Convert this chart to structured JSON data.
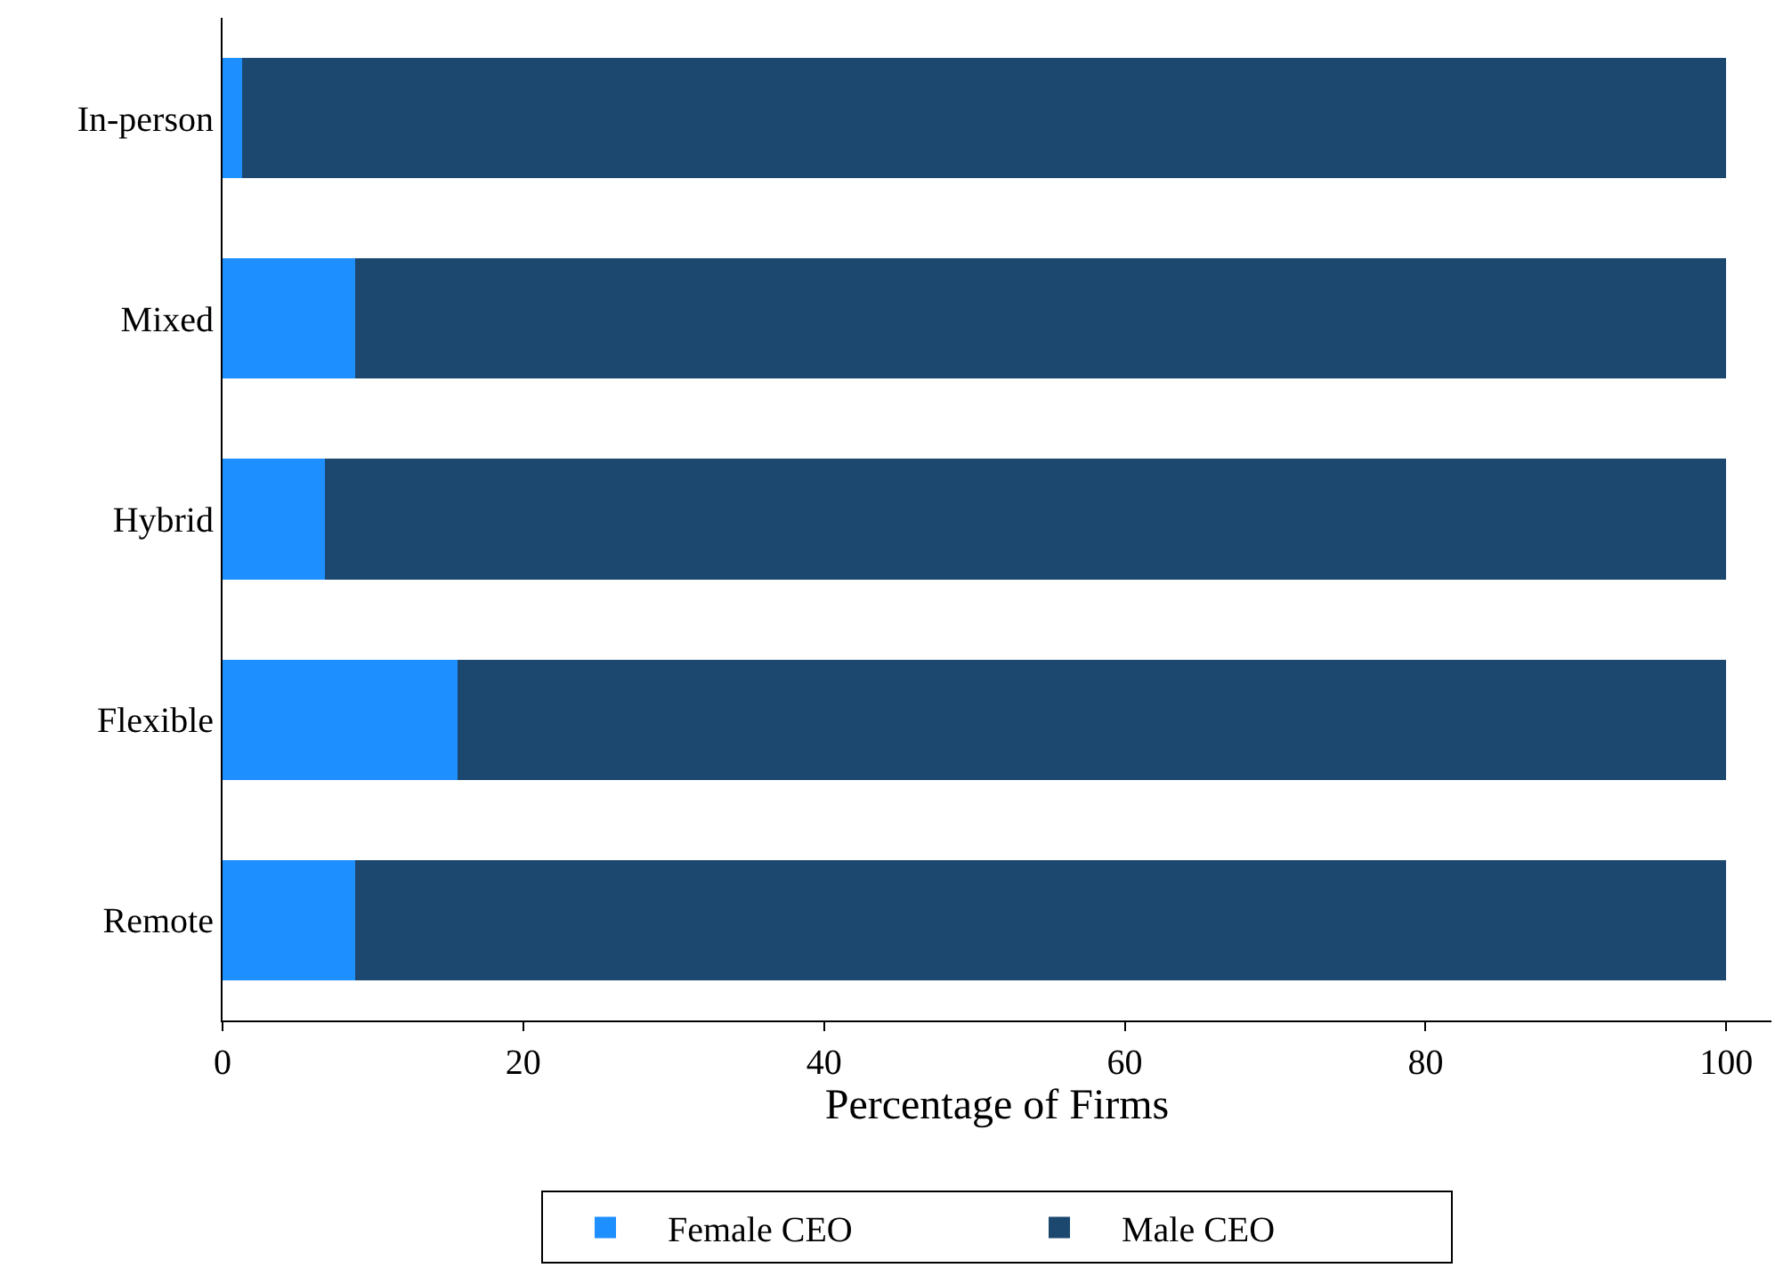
{
  "chart_data": {
    "type": "bar",
    "orientation": "horizontal",
    "stacked": true,
    "xlabel": "Percentage of Firms",
    "categories": [
      "In-person",
      "Mixed",
      "Hybrid",
      "Flexible",
      "Remote"
    ],
    "series": [
      {
        "name": "Female CEO",
        "color": "#1e8fff",
        "values": [
          1.3,
          8.8,
          6.8,
          15.6,
          8.8
        ]
      },
      {
        "name": "Male CEO",
        "color": "#1c476e",
        "values": [
          98.7,
          91.2,
          93.2,
          84.4,
          91.2
        ]
      }
    ],
    "xlim": [
      0,
      103
    ],
    "xticks": [
      0,
      20,
      40,
      60,
      80,
      100
    ],
    "legend": "bottom"
  }
}
